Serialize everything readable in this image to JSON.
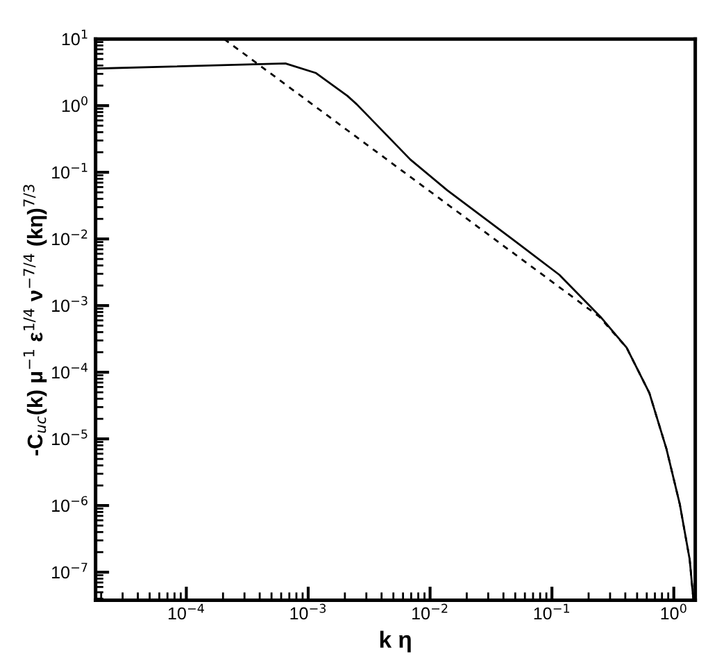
{
  "chart_data": {
    "type": "line",
    "log": "xy",
    "grid": false,
    "legend": false,
    "xlabel": "k η",
    "ylabel": "-C$_{uc}$(k) μ$^{−1}$ ε$^{1/4}$ ν$^{−7/4}$ (kη)$^{7/3}$",
    "xlim": [
      1.8e-05,
      1.5
    ],
    "ylim": [
      3.8e-08,
      10
    ],
    "xticks": [
      {
        "value": 0.0001,
        "label": "10$^{−4}$"
      },
      {
        "value": 0.001,
        "label": "10$^{−3}$"
      },
      {
        "value": 0.01,
        "label": "10$^{−2}$"
      },
      {
        "value": 0.1,
        "label": "10$^{−1}$"
      },
      {
        "value": 1,
        "label": "10$^{0}$"
      }
    ],
    "yticks": [
      {
        "value": 1e-07,
        "label": "10$^{−7}$"
      },
      {
        "value": 1e-06,
        "label": "10$^{−6}$"
      },
      {
        "value": 1e-05,
        "label": "10$^{−5}$"
      },
      {
        "value": 0.0001,
        "label": "10$^{−4}$"
      },
      {
        "value": 0.001,
        "label": "10$^{−3}$"
      },
      {
        "value": 0.01,
        "label": "10$^{−2}$"
      },
      {
        "value": 0.1,
        "label": "10$^{−1}$"
      },
      {
        "value": 1,
        "label": "10$^{0}$"
      },
      {
        "value": 10,
        "label": "10$^{1}$"
      }
    ],
    "series": [
      {
        "color": "#000000",
        "line_style": "solid",
        "x": [
          1.8e-05,
          0.00065,
          0.00115,
          0.0021,
          0.0025,
          0.0069,
          0.0138,
          0.049,
          0.115,
          0.25,
          0.32,
          0.41,
          0.63,
          0.87,
          1.12,
          1.35,
          1.45
        ],
        "values": [
          3.6,
          4.3,
          3.1,
          1.4,
          1.05,
          0.155,
          0.054,
          0.0095,
          0.0029,
          0.00068,
          0.0004,
          0.000234,
          4.9e-05,
          7.1e-06,
          1.05e-06,
          1.55e-07,
          3.8e-08
        ]
      },
      {
        "color": "#000000",
        "line_style": "dashed",
        "x": [
          0.000204,
          0.245,
          0.41,
          0.63,
          0.87,
          1.12,
          1.35,
          1.45
        ],
        "values": [
          10,
          0.00068,
          0.000234,
          4.9e-05,
          7.1e-06,
          1.05e-06,
          1.55e-07,
          3.8e-08
        ]
      }
    ]
  }
}
